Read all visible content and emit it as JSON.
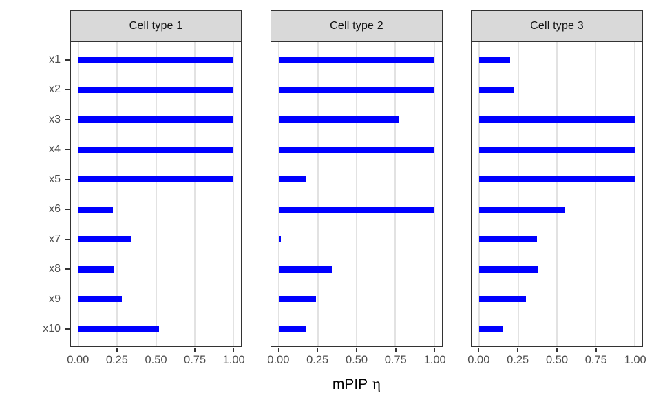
{
  "chart_data": {
    "type": "bar",
    "orientation": "horizontal",
    "xlabel": "mPIP η",
    "xlabel_parts": {
      "main": "mPIP",
      "symbol": "η"
    },
    "ylabel": "",
    "xlim": [
      0,
      1
    ],
    "x_ticks": [
      0,
      0.25,
      0.5,
      0.75,
      1.0
    ],
    "x_tick_labels": [
      "0.00",
      "0.25",
      "0.50",
      "0.75",
      "1.00"
    ],
    "categories": [
      "x1",
      "x2",
      "x3",
      "x4",
      "x5",
      "x6",
      "x7",
      "x8",
      "x9",
      "x10"
    ],
    "facets": [
      {
        "label": "Cell type 1",
        "values": [
          1.0,
          1.0,
          1.0,
          1.0,
          1.0,
          0.22,
          0.34,
          0.23,
          0.28,
          0.52
        ]
      },
      {
        "label": "Cell type 2",
        "values": [
          1.0,
          1.0,
          0.77,
          1.0,
          0.17,
          1.0,
          0.01,
          0.34,
          0.24,
          0.17
        ]
      },
      {
        "label": "Cell type 3",
        "values": [
          0.2,
          0.22,
          1.0,
          1.0,
          1.0,
          0.55,
          0.37,
          0.38,
          0.3,
          0.15
        ]
      }
    ],
    "grid": "vertical-major-only",
    "legend": "none",
    "colors": {
      "bar": "#0000FF",
      "panel_background": "#FFFFFF",
      "panel_border": "#333333",
      "strip_background": "#D9D9D9",
      "strip_border": "#333333",
      "gridline": "#E2E2E2",
      "tick_label": "#4D4D4D",
      "axis_title": "#000000",
      "tick_mark": "#333333"
    }
  }
}
